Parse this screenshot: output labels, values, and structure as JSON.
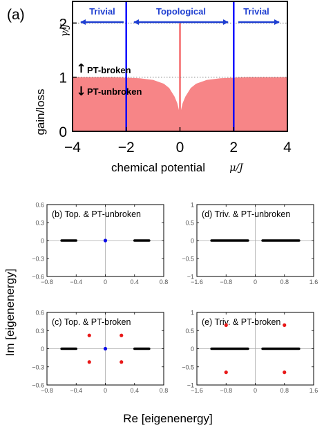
{
  "colors": {
    "fill": "#f78587",
    "boundary": "#0000ff",
    "region_label": "#1f3fd1",
    "gray_axis": "#aaaaaa",
    "black": "#000000",
    "red": "#e81818",
    "blue": "#0a0ae8"
  },
  "panel_a": {
    "panel_label": "(a)",
    "region_labels": {
      "left": "Trivial",
      "center": "Topological",
      "right": "Trivial"
    },
    "pt_broken": "PT-broken",
    "pt_unbroken": "PT-unbroken",
    "arrow_up": "↑",
    "arrow_down": "↓"
  },
  "common": {
    "ylabel": "Im [eigenenergy]",
    "xlabel": "Re [eigenenergy]"
  },
  "chart_data": [
    {
      "id": "a",
      "type": "area",
      "xlabel": "chemical potential",
      "xlabel_symbol": "μ/J",
      "ylabel": "gain/loss",
      "ylabel_symbol": "γ/J",
      "xlim": [
        -4,
        4
      ],
      "ylim": [
        0,
        2.4
      ],
      "xticks": [
        -4,
        -2,
        0,
        2,
        4
      ],
      "xtick_labels": [
        "−4",
        "−2",
        "0",
        "2",
        "4"
      ],
      "yticks": [
        0,
        1,
        2
      ],
      "ytick_labels": [
        "0",
        "1",
        "2"
      ],
      "reference_lines_y": [
        1,
        2
      ],
      "boundaries_x": [
        -2,
        2
      ],
      "spike": {
        "x": 0,
        "y": 2
      },
      "series": [
        {
          "x": [
            -4,
            -2.5,
            -1.5,
            -1,
            -0.6,
            -0.4,
            -0.2,
            -0.1,
            -0.05,
            0,
            0.05,
            0.1,
            0.2,
            0.4,
            0.6,
            1,
            1.5,
            2.5,
            4
          ],
          "y": [
            1,
            1,
            0.98,
            0.95,
            0.88,
            0.8,
            0.64,
            0.52,
            0.42,
            0.3,
            0.42,
            0.52,
            0.64,
            0.8,
            0.88,
            0.95,
            0.98,
            1,
            1
          ]
        }
      ]
    },
    {
      "id": "b",
      "type": "scatter",
      "title": "(b) Top. & PT-unbroken",
      "xlim": [
        -0.8,
        0.8
      ],
      "ylim": [
        -0.6,
        0.6
      ],
      "xticks": [
        -0.8,
        -0.4,
        0,
        0.4,
        0.8
      ],
      "xtick_labels": [
        "−0.8",
        "−0.4",
        "0",
        "0.4",
        "0.8"
      ],
      "yticks": [
        -0.6,
        -0.3,
        0,
        0.3,
        0.6
      ],
      "ytick_labels": [
        "−0.6",
        "−0.3",
        "0",
        "0.3",
        "0.6"
      ],
      "segments": [
        {
          "x0": -0.6,
          "x1": -0.4,
          "y": 0
        },
        {
          "x0": 0.4,
          "x1": 0.6,
          "y": 0
        }
      ],
      "blue_points": [
        [
          0,
          0
        ]
      ],
      "red_points": []
    },
    {
      "id": "d",
      "type": "scatter",
      "title": "(d) Triv. & PT-unbroken",
      "xlim": [
        -1.6,
        1.6
      ],
      "ylim": [
        -1,
        1
      ],
      "xticks": [
        -1.6,
        -0.8,
        0,
        0.8,
        1.6
      ],
      "xtick_labels": [
        "−1.6",
        "−0.8",
        "0",
        "0.8",
        "1.6"
      ],
      "yticks": [
        -1,
        -0.5,
        0,
        0.5,
        1
      ],
      "ytick_labels": [
        "−1",
        "−0.5",
        "0",
        "0.5",
        "1"
      ],
      "segments": [
        {
          "x0": -1.2,
          "x1": -0.2,
          "y": 0
        },
        {
          "x0": 0.2,
          "x1": 1.2,
          "y": 0
        }
      ],
      "blue_points": [],
      "red_points": []
    },
    {
      "id": "c",
      "type": "scatter",
      "title": "(c) Top. & PT-broken",
      "xlim": [
        -0.8,
        0.8
      ],
      "ylim": [
        -0.6,
        0.6
      ],
      "xticks": [
        -0.8,
        -0.4,
        0,
        0.4,
        0.8
      ],
      "xtick_labels": [
        "−0.8",
        "−0.4",
        "0",
        "0.4",
        "0.8"
      ],
      "yticks": [
        -0.6,
        -0.3,
        0,
        0.3,
        0.6
      ],
      "ytick_labels": [
        "−0.6",
        "−0.3",
        "0",
        "0.3",
        "0.6"
      ],
      "segments": [
        {
          "x0": -0.6,
          "x1": -0.4,
          "y": 0
        },
        {
          "x0": 0.4,
          "x1": 0.6,
          "y": 0
        }
      ],
      "blue_points": [
        [
          0,
          0
        ]
      ],
      "red_points": [
        [
          -0.22,
          0.22
        ],
        [
          0.22,
          0.22
        ],
        [
          -0.22,
          -0.22
        ],
        [
          0.22,
          -0.22
        ]
      ]
    },
    {
      "id": "e",
      "type": "scatter",
      "title": "(e) Triv. & PT-broken",
      "xlim": [
        -1.6,
        1.6
      ],
      "ylim": [
        -1,
        1
      ],
      "xticks": [
        -1.6,
        -0.8,
        0,
        0.8,
        1.6
      ],
      "xtick_labels": [
        "−1.6",
        "−0.8",
        "0",
        "0.8",
        "1.6"
      ],
      "yticks": [
        -1,
        -0.5,
        0,
        0.5,
        1
      ],
      "ytick_labels": [
        "−1",
        "−0.5",
        "0",
        "0.5",
        "1"
      ],
      "segments": [
        {
          "x0": -1.2,
          "x1": -0.2,
          "y": 0
        },
        {
          "x0": 0.2,
          "x1": 1.2,
          "y": 0
        }
      ],
      "blue_points": [],
      "red_points": [
        [
          -0.8,
          0.65
        ],
        [
          0.8,
          0.65
        ],
        [
          -0.8,
          -0.65
        ],
        [
          0.8,
          -0.65
        ]
      ]
    }
  ]
}
